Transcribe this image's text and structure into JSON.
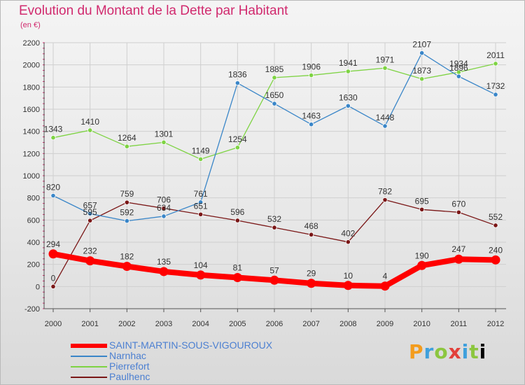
{
  "chart_data": {
    "type": "line",
    "title": "Evolution du Montant de la Dette par Habitant",
    "subtitle": "(en €)",
    "categories": [
      "2000",
      "2001",
      "2002",
      "2003",
      "2004",
      "2005",
      "2006",
      "2007",
      "2008",
      "2009",
      "2010",
      "2011",
      "2012"
    ],
    "ylim": [
      -200,
      2200
    ],
    "yticks": [
      -200,
      0,
      200,
      400,
      600,
      800,
      1000,
      1200,
      1400,
      1600,
      1800,
      2000,
      2200
    ],
    "grid": true,
    "legend_position": "bottom-left",
    "series": [
      {
        "name": "SAINT-MARTIN-SOUS-VIGOUROUX",
        "color": "#ff0000",
        "values": [
          294,
          232,
          182,
          135,
          104,
          81,
          57,
          29,
          10,
          4,
          190,
          247,
          240
        ]
      },
      {
        "name": "Narnhac",
        "color": "#3a86c8",
        "values": [
          820,
          657,
          592,
          634,
          761,
          1836,
          1650,
          1463,
          1630,
          1448,
          2107,
          1896,
          1732
        ]
      },
      {
        "name": "Pierrefort",
        "color": "#7ed343",
        "values": [
          1343,
          1410,
          1264,
          1301,
          1149,
          1254,
          1885,
          1906,
          1941,
          1971,
          1873,
          1934,
          2011
        ]
      },
      {
        "name": "Paulhenc",
        "color": "#7a1616",
        "values": [
          0,
          595,
          759,
          706,
          651,
          596,
          532,
          468,
          402,
          782,
          695,
          670,
          552
        ]
      }
    ]
  },
  "logo": {
    "letters": [
      "P",
      "r",
      "o",
      "x",
      "i",
      "t",
      "i"
    ]
  }
}
